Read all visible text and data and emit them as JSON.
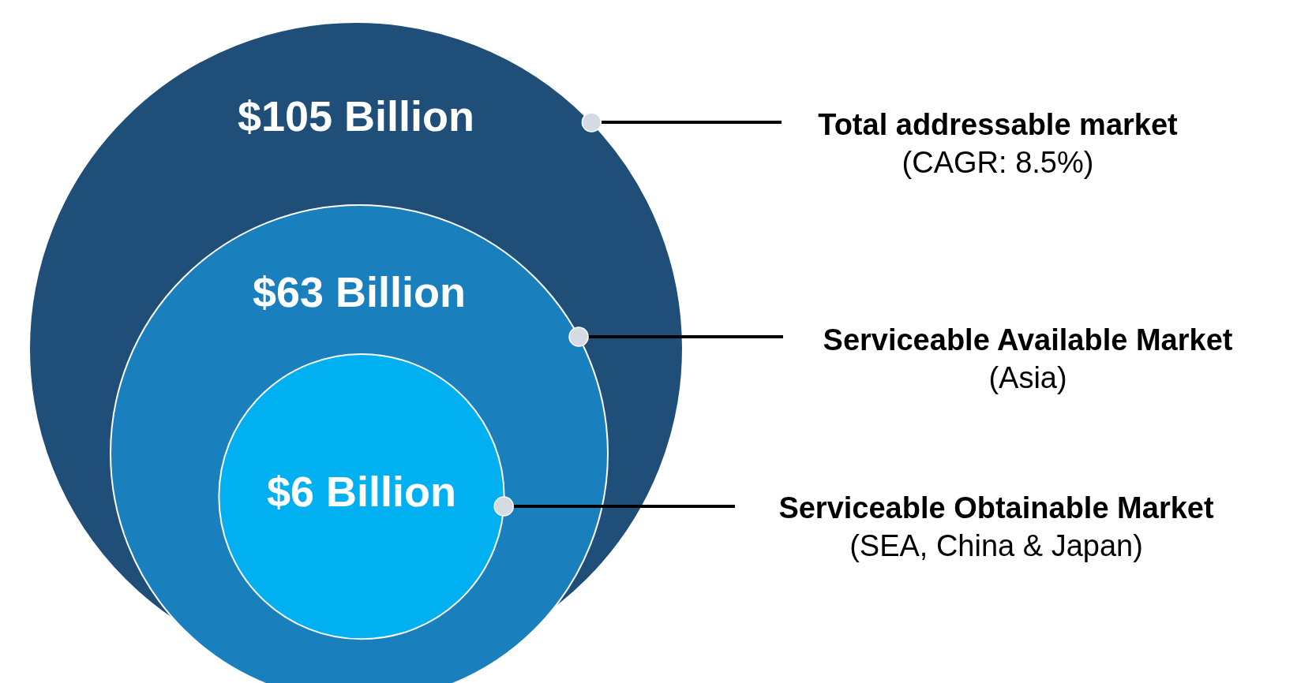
{
  "chart_data": {
    "type": "other",
    "categories": [
      "Total addressable market",
      "Serviceable Available Market",
      "Serviceable Obtainable Market"
    ],
    "values": [
      105,
      63,
      6
    ],
    "value_labels": [
      "$105 Billion",
      "$63 Billion",
      "$6 Billion"
    ],
    "annotations": [
      "(CAGR: 8.5%)",
      "(Asia)",
      "(SEA, China & Japan)"
    ],
    "colors": [
      "#1f4e79",
      "#1a7fbd",
      "#00b0f0"
    ]
  }
}
